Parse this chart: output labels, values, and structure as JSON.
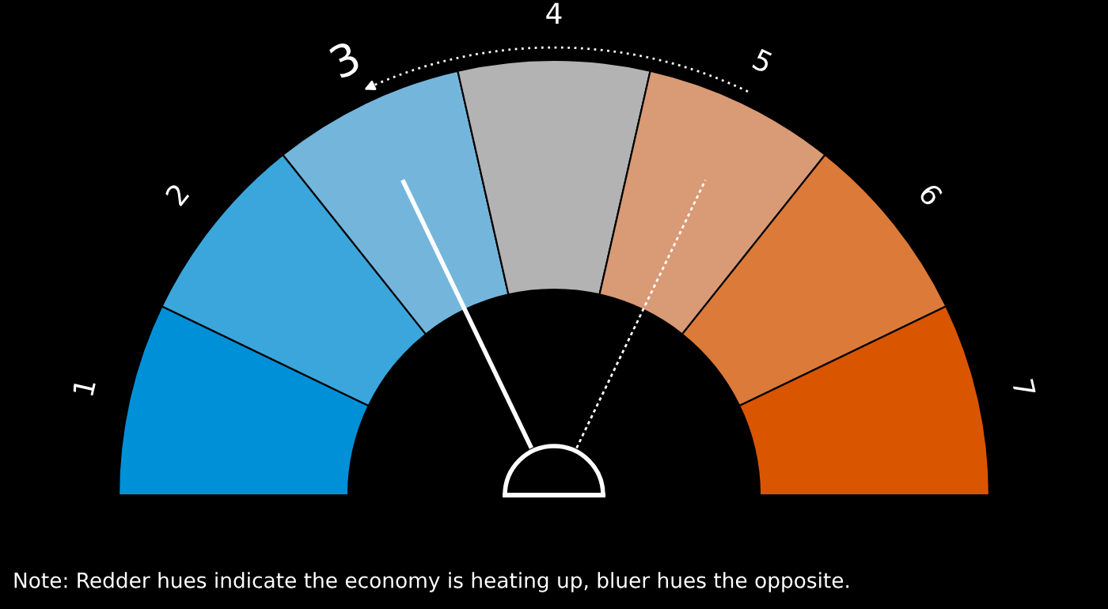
{
  "chart_data": {
    "type": "donut",
    "categories": [
      "1",
      "2",
      "3",
      "4",
      "5",
      "6",
      "7"
    ],
    "values": [
      14.3,
      14.3,
      14.3,
      14.2,
      14.3,
      14.3,
      14.3
    ],
    "colors": [
      "#0090d8",
      "#3aa6dc",
      "#74b6db",
      "#b3b3b3",
      "#d99a76",
      "#dc7a3a",
      "#d95500"
    ],
    "needle": "3",
    "annotations": [
      "Note: Redder hues indicate the economy is heating up, bluer hues the opposite."
    ]
  }
}
